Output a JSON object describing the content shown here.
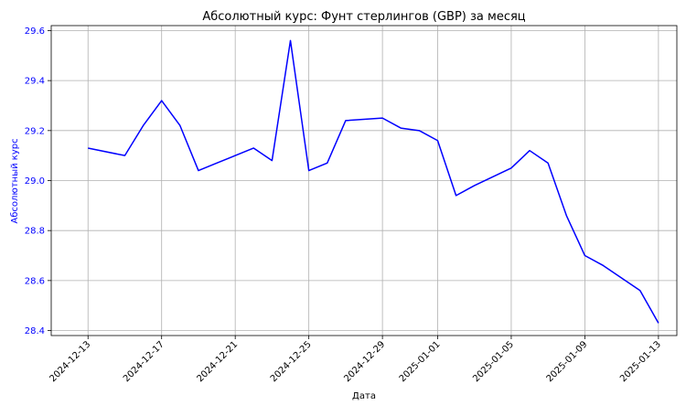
{
  "chart_data": {
    "type": "line",
    "title": "Абсолютный курс: Фунт стерлингов (GBP) за месяц",
    "xlabel": "Дата",
    "ylabel": "Абсолютный курс",
    "ylim": [
      28.38,
      29.62
    ],
    "yticks": [
      28.4,
      28.6,
      28.8,
      29.0,
      29.2,
      29.4,
      29.6
    ],
    "ytick_labels": [
      "28.4",
      "28.6",
      "28.8",
      "29.0",
      "29.2",
      "29.4",
      "29.6"
    ],
    "xlim": [
      "2024-12-11",
      "2025-01-14"
    ],
    "xticks": [
      "2024-12-13",
      "2024-12-17",
      "2024-12-21",
      "2024-12-25",
      "2024-12-29",
      "2025-01-01",
      "2025-01-05",
      "2025-01-09",
      "2025-01-13"
    ],
    "grid": true,
    "colors": {
      "line": "#0000ff",
      "ylabel": "#0000ff",
      "ytick": "#0000ff",
      "grid": "#b0b0b0",
      "axis": "#000000"
    },
    "series": [
      {
        "x": [
          "2024-12-13",
          "2024-12-15",
          "2024-12-16",
          "2024-12-17",
          "2024-12-18",
          "2024-12-19",
          "2024-12-20",
          "2024-12-22",
          "2024-12-23",
          "2024-12-24",
          "2024-12-25",
          "2024-12-26",
          "2024-12-27",
          "2024-12-29",
          "2024-12-30",
          "2024-12-31",
          "2025-01-01",
          "2025-01-02",
          "2025-01-03",
          "2025-01-05",
          "2025-01-06",
          "2025-01-07",
          "2025-01-08",
          "2025-01-09",
          "2025-01-10",
          "2025-01-12",
          "2025-01-13"
        ],
        "y": [
          29.13,
          29.1,
          29.22,
          29.32,
          29.22,
          29.04,
          29.07,
          29.13,
          29.08,
          29.56,
          29.04,
          29.07,
          29.24,
          29.25,
          29.21,
          29.2,
          29.16,
          28.94,
          28.98,
          29.05,
          29.12,
          29.07,
          28.86,
          28.7,
          28.66,
          28.56,
          28.43
        ]
      }
    ]
  }
}
